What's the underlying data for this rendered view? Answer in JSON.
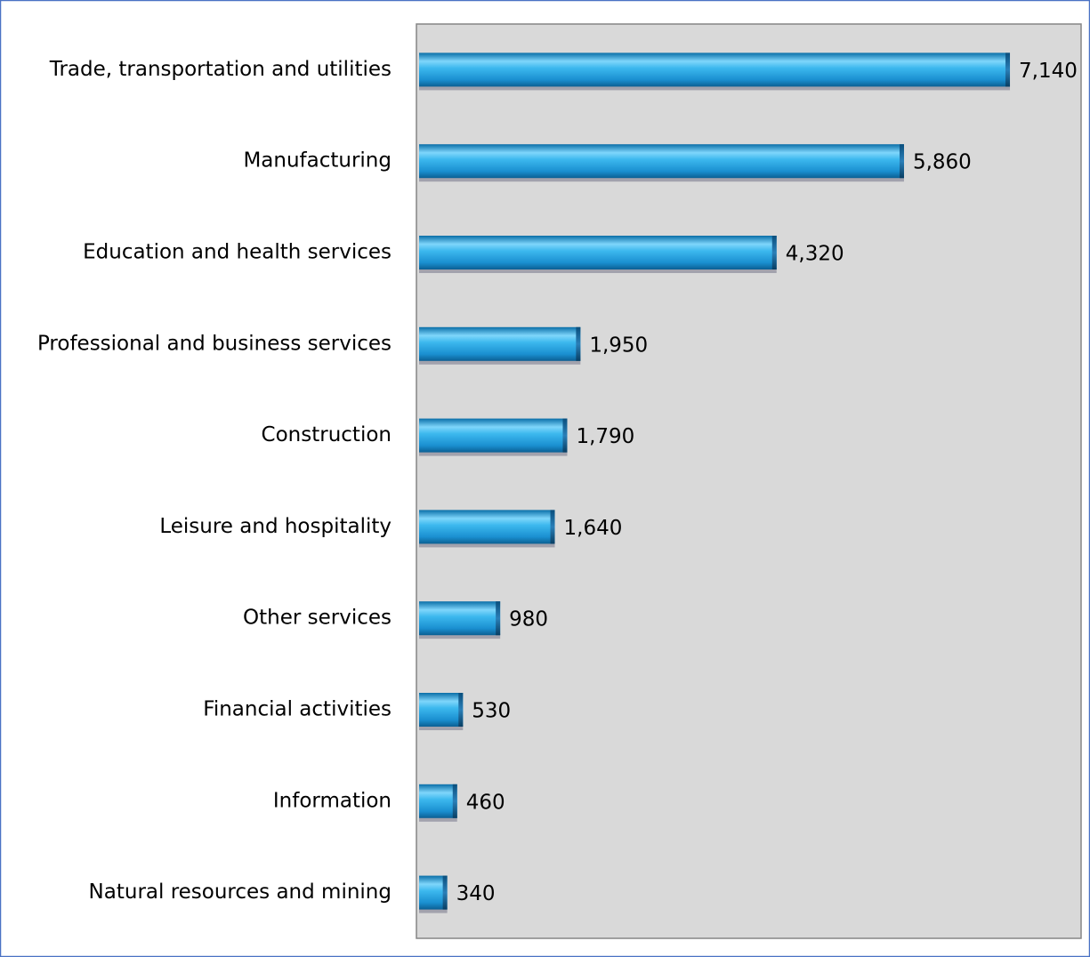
{
  "chart_data": {
    "type": "bar",
    "orientation": "horizontal",
    "categories": [
      "Trade, transportation and utilities",
      "Manufacturing",
      "Education and health services",
      "Professional and business services",
      "Construction",
      "Leisure and hospitality",
      "Other services",
      "Financial activities",
      "Information",
      "Natural resources and mining"
    ],
    "values": [
      7140,
      5860,
      4320,
      1950,
      1790,
      1640,
      980,
      530,
      460,
      340
    ],
    "value_labels": [
      "7,140",
      "5,860",
      "4,320",
      "1,950",
      "1,790",
      "1,640",
      "980",
      "530",
      "460",
      "340"
    ],
    "color": "#1fa4e0",
    "xlim": [
      0,
      8000
    ]
  }
}
